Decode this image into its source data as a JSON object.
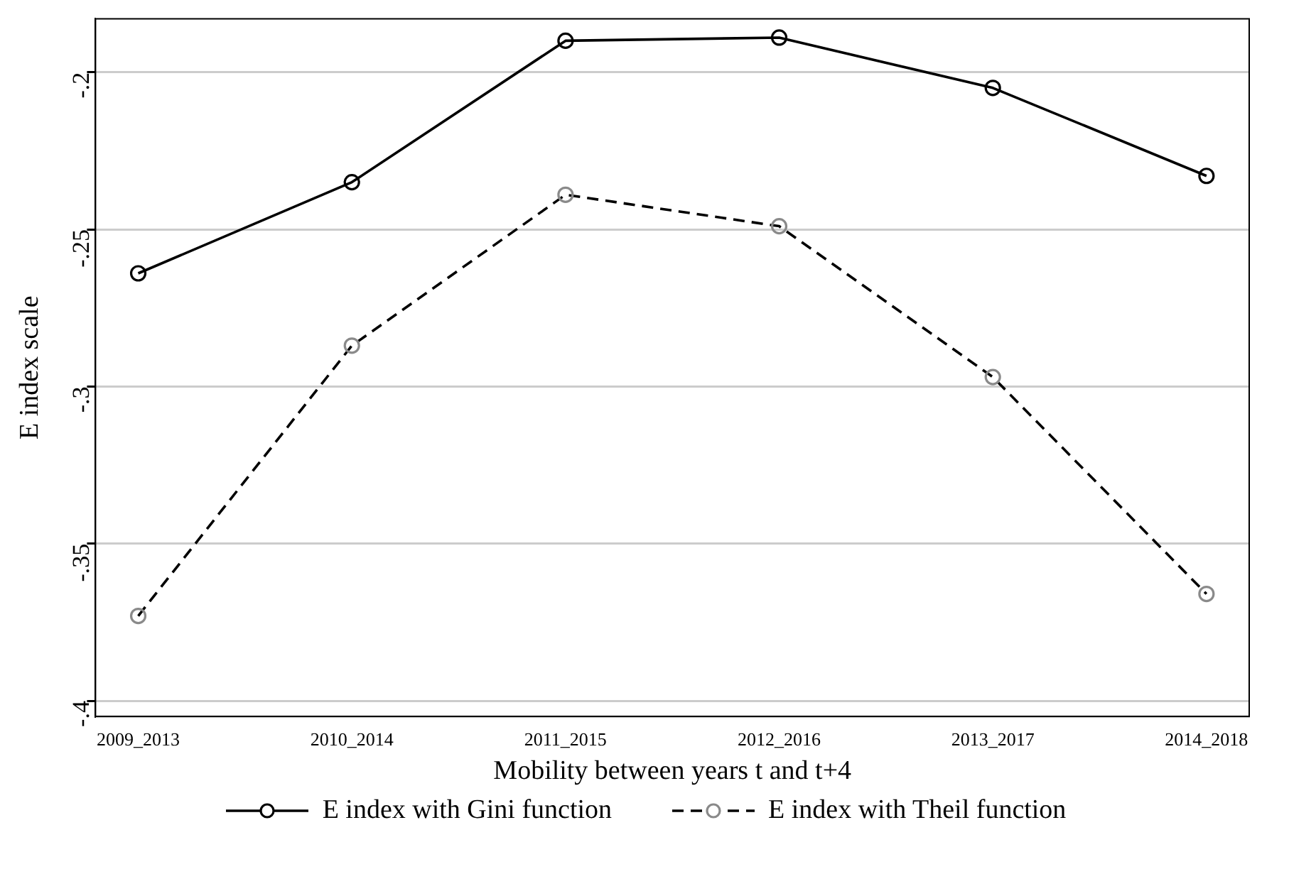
{
  "chart_data": {
    "type": "line",
    "xlabel": "Mobility between years t and t+4",
    "ylabel": "E index scale",
    "categories": [
      "2009_2013",
      "2010_2014",
      "2011_2015",
      "2012_2016",
      "2013_2017",
      "2014_2018"
    ],
    "series": [
      {
        "name": "E index with Gini function",
        "color": "#000000",
        "line_style": "solid",
        "values": [
          -0.264,
          -0.235,
          -0.19,
          -0.189,
          -0.205,
          -0.233
        ]
      },
      {
        "name": "E index with Theil function",
        "color": "#000000",
        "line_style": "dashed",
        "values": [
          -0.373,
          -0.287,
          -0.239,
          -0.249,
          -0.297,
          -0.366
        ]
      }
    ],
    "ylim": [
      -0.405,
      -0.183
    ],
    "yticks": [
      {
        "value": -0.4,
        "label": "-.4"
      },
      {
        "value": -0.35,
        "label": "-.35"
      },
      {
        "value": -0.3,
        "label": "-.3"
      },
      {
        "value": -0.25,
        "label": "-.25"
      },
      {
        "value": -0.2,
        "label": "-.2"
      }
    ],
    "grid": "y",
    "legend": "bottom",
    "marker": "circle"
  }
}
